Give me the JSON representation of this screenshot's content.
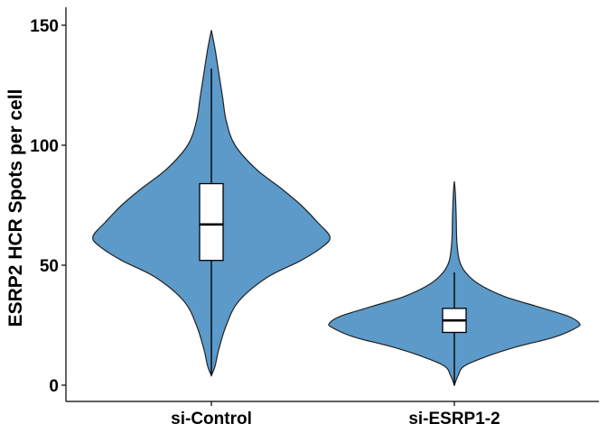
{
  "chart_data": {
    "type": "violin",
    "title": "",
    "xlabel": "",
    "ylabel": "ESRP2 HCR Spots per cell",
    "categories": [
      "si-Control",
      "si-ESRP1-2"
    ],
    "ylim": [
      0,
      150
    ],
    "yticks": [
      0,
      50,
      100,
      150
    ],
    "fill_color": "#5B9AC9",
    "outline_color": "#222222",
    "grid": false,
    "series": [
      {
        "category": "si-Control",
        "min": 4,
        "max": 148,
        "box": {
          "q1": 52,
          "median": 67,
          "q3": 84,
          "whisker_low": 4,
          "whisker_high": 132
        },
        "density": [
          [
            4,
            0.0
          ],
          [
            8,
            0.03
          ],
          [
            15,
            0.06
          ],
          [
            25,
            0.12
          ],
          [
            35,
            0.22
          ],
          [
            45,
            0.45
          ],
          [
            52,
            0.72
          ],
          [
            58,
            0.9
          ],
          [
            62,
            0.95
          ],
          [
            68,
            0.85
          ],
          [
            75,
            0.72
          ],
          [
            82,
            0.56
          ],
          [
            90,
            0.36
          ],
          [
            100,
            0.19
          ],
          [
            110,
            0.12
          ],
          [
            120,
            0.09
          ],
          [
            130,
            0.06
          ],
          [
            140,
            0.03
          ],
          [
            148,
            0.0
          ]
        ]
      },
      {
        "category": "si-ESRP1-2",
        "min": 0,
        "max": 85,
        "box": {
          "q1": 22,
          "median": 27,
          "q3": 32,
          "whisker_low": 0,
          "whisker_high": 47
        },
        "density": [
          [
            0,
            0.0
          ],
          [
            4,
            0.03
          ],
          [
            8,
            0.08
          ],
          [
            12,
            0.26
          ],
          [
            16,
            0.5
          ],
          [
            20,
            0.8
          ],
          [
            24,
            0.98
          ],
          [
            26,
            1.0
          ],
          [
            29,
            0.9
          ],
          [
            33,
            0.65
          ],
          [
            37,
            0.4
          ],
          [
            42,
            0.2
          ],
          [
            47,
            0.09
          ],
          [
            52,
            0.04
          ],
          [
            60,
            0.02
          ],
          [
            70,
            0.015
          ],
          [
            80,
            0.008
          ],
          [
            85,
            0.0
          ]
        ]
      }
    ]
  }
}
